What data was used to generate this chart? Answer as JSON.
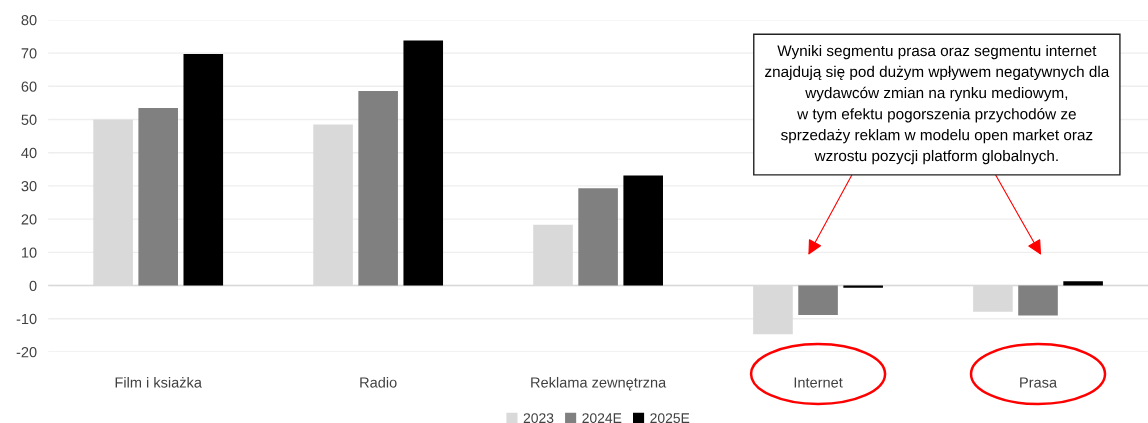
{
  "chart_data": {
    "type": "bar",
    "categories": [
      "Film i ksiażka",
      "Radio",
      "Reklama zewnętrzna",
      "Internet",
      "Prasa"
    ],
    "series": [
      {
        "name": "2023",
        "color": "#d9d9d9",
        "values": [
          50.0,
          48.5,
          18.3,
          -14.7,
          -7.9
        ]
      },
      {
        "name": "2024E",
        "color": "#808080",
        "values": [
          53.5,
          58.6,
          29.3,
          -8.9,
          -9.0
        ]
      },
      {
        "name": "2025E",
        "color": "#000000",
        "values": [
          69.7,
          73.8,
          33.1,
          -0.7,
          1.3
        ]
      }
    ],
    "ylim": [
      -20,
      80
    ],
    "yticks": [
      -20,
      -10,
      0,
      10,
      20,
      30,
      40,
      50,
      60,
      70,
      80
    ],
    "grid": "y",
    "legend": "bottom",
    "annotations": [
      "Wyniki segmentu prasa oraz segmentu internet\nznajdują się pod dużym wpływem negatywnych dla\nwydawców zmian na rynku mediowym,\nw tym efektu pogorszenia przychodów ze\nsprzedaży reklam w modelu open market oraz\nwzrostu pozycji platform globalnych."
    ]
  }
}
